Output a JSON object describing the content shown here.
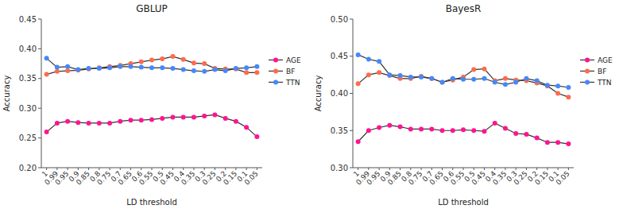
{
  "chart_data": [
    {
      "type": "line",
      "title": "GBLUP",
      "x_label": "LD threshold",
      "y_label": "Accuracy",
      "categories": [
        "1",
        "0.99",
        "0.95",
        "0.9",
        "0.85",
        "0.8",
        "0.75",
        "0.7",
        "0.65",
        "0.6",
        "0.55",
        "0.5",
        "0.45",
        "0.4",
        "0.35",
        "0.3",
        "0.25",
        "0.2",
        "0.15",
        "0.1",
        "0.05"
      ],
      "series": [
        {
          "name": "AGE",
          "color": "#FF1493",
          "values": [
            0.26,
            0.275,
            0.278,
            0.276,
            0.275,
            0.275,
            0.275,
            0.278,
            0.28,
            0.28,
            0.281,
            0.283,
            0.285,
            0.285,
            0.285,
            0.287,
            0.289,
            0.283,
            0.278,
            0.268,
            0.252
          ]
        },
        {
          "name": "BF",
          "color": "#FF6B4A",
          "values": [
            0.357,
            0.362,
            0.363,
            0.364,
            0.366,
            0.368,
            0.37,
            0.372,
            0.375,
            0.378,
            0.381,
            0.383,
            0.387,
            0.382,
            0.376,
            0.375,
            0.367,
            0.366,
            0.366,
            0.36,
            0.36
          ]
        },
        {
          "name": "TTN",
          "color": "#4488FF",
          "values": [
            0.384,
            0.369,
            0.37,
            0.365,
            0.367,
            0.367,
            0.368,
            0.37,
            0.37,
            0.369,
            0.368,
            0.368,
            0.367,
            0.365,
            0.363,
            0.362,
            0.365,
            0.363,
            0.367,
            0.368,
            0.37
          ]
        }
      ],
      "ylim": [
        0.2,
        0.45
      ],
      "yticks": [
        {
          "value": 0.2,
          "label": "0.20"
        },
        0.25,
        {
          "value": 0.3,
          "label": "0.30"
        },
        0.35,
        {
          "value": 0.4,
          "label": "0.40"
        },
        0.45
      ],
      "marker": "circle",
      "grid": false,
      "legend": "right"
    },
    {
      "type": "line",
      "title": "BayesR",
      "x_label": "LD threshold",
      "y_label": "Accuracy",
      "categories": [
        "1",
        "0.99",
        "0.95",
        "0.9",
        "0.85",
        "0.8",
        "0.75",
        "0.7",
        "0.65",
        "0.6",
        "0.55",
        "0.5",
        "0.45",
        "0.4",
        "0.35",
        "0.3",
        "0.25",
        "0.2",
        "0.15",
        "0.1",
        "0.05"
      ],
      "series": [
        {
          "name": "AGE",
          "color": "#FF1493",
          "values": [
            0.335,
            0.35,
            0.354,
            0.357,
            0.355,
            0.352,
            0.352,
            0.352,
            0.35,
            0.35,
            0.351,
            0.35,
            0.349,
            0.36,
            0.353,
            0.346,
            0.345,
            0.34,
            0.334,
            0.334,
            0.332
          ]
        },
        {
          "name": "BF",
          "color": "#FF6B4A",
          "values": [
            0.413,
            0.425,
            0.428,
            0.424,
            0.42,
            0.42,
            0.423,
            0.42,
            0.415,
            0.418,
            0.422,
            0.432,
            0.433,
            0.417,
            0.42,
            0.418,
            0.417,
            0.414,
            0.41,
            0.4,
            0.395
          ]
        },
        {
          "name": "TTN",
          "color": "#4488FF",
          "values": [
            0.452,
            0.446,
            0.443,
            0.425,
            0.424,
            0.422,
            0.422,
            0.42,
            0.415,
            0.42,
            0.419,
            0.419,
            0.42,
            0.415,
            0.412,
            0.415,
            0.42,
            0.417,
            0.411,
            0.41,
            0.408
          ]
        }
      ],
      "ylim": [
        0.3,
        0.5
      ],
      "yticks": [
        {
          "value": 0.3,
          "label": "0.30"
        },
        0.35,
        {
          "value": 0.4,
          "label": "0.40"
        },
        0.45,
        {
          "value": 0.5,
          "label": "0.50"
        }
      ],
      "marker": "circle",
      "grid": false,
      "legend": "right"
    }
  ]
}
